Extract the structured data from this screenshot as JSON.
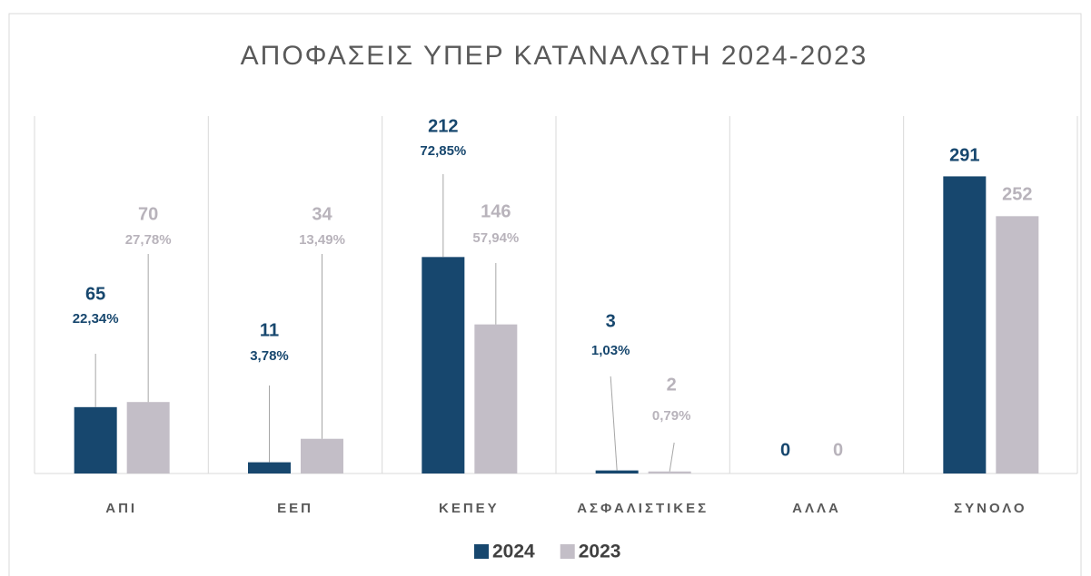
{
  "chart_data": {
    "type": "bar",
    "title": "ΑΠΟΦΑΣΕΙΣ ΥΠΕΡ ΚΑΤΑΝΑΛΩΤΗ 2024-2023",
    "categories": [
      "ΑΠΙ",
      "ΕΕΠ",
      "ΚΕΠΕΥ",
      "ΑΣΦΑΛΙΣΤΙΚΕΣ",
      "ΑΛΛΑ",
      "ΣΥΝΟΛΟ"
    ],
    "series": [
      {
        "name": "2024",
        "color": "#17476e",
        "values": [
          65,
          11,
          212,
          3,
          0,
          291
        ],
        "percent_labels": [
          "22,34%",
          "3,78%",
          "72,85%",
          "1,03%",
          null,
          null
        ]
      },
      {
        "name": "2023",
        "color": "#c3bec7",
        "values": [
          70,
          34,
          146,
          2,
          0,
          252
        ],
        "percent_labels": [
          "27,78%",
          "13,49%",
          "57,94%",
          "0,79%",
          null,
          null
        ]
      }
    ],
    "ylim": [
      0,
      350
    ],
    "legend": "bottom"
  }
}
